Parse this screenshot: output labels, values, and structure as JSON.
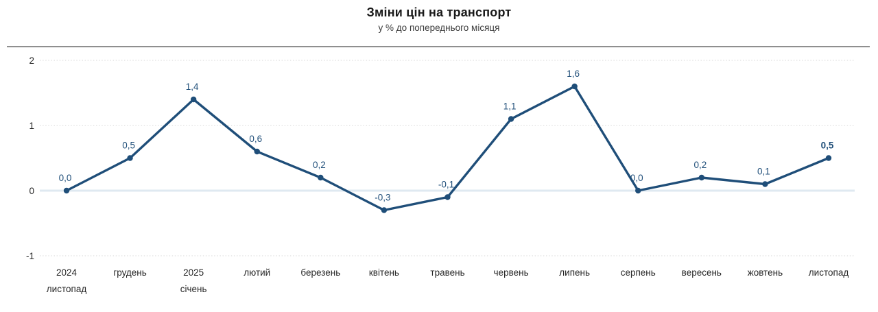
{
  "header": {
    "title": "Зміни цін на транспорт",
    "subtitle": "у % до попереднього місяця"
  },
  "chart_data": {
    "type": "line",
    "title": "Зміни цін на транспорт",
    "subtitle": "у % до попереднього місяця",
    "categories": [
      [
        "2024",
        "листопад"
      ],
      [
        "грудень"
      ],
      [
        "2025",
        "січень"
      ],
      [
        "лютий"
      ],
      [
        "березень"
      ],
      [
        "квітень"
      ],
      [
        "травень"
      ],
      [
        "червень"
      ],
      [
        "липень"
      ],
      [
        "серпень"
      ],
      [
        "вересень"
      ],
      [
        "жовтень"
      ],
      [
        "листопад"
      ]
    ],
    "values": [
      0.0,
      0.5,
      1.4,
      0.6,
      0.2,
      -0.3,
      -0.1,
      1.1,
      1.6,
      0.0,
      0.2,
      0.1,
      0.5
    ],
    "value_labels": [
      "0,0",
      "0,5",
      "1,4",
      "0,6",
      "0,2",
      "-0,3",
      "-0,1",
      "1,1",
      "1,6",
      "0,0",
      "0,2",
      "0,1",
      "0,5"
    ],
    "last_value_bold": true,
    "y_ticks": [
      2,
      1,
      0,
      -1
    ],
    "ylim": [
      -1,
      2
    ],
    "xlabel": "",
    "ylabel": "",
    "grid": "horizontal-dotted",
    "legend": "none",
    "colors": {
      "line": "#1f4e79",
      "marker": "#1f4e79",
      "data_label": "#1f4e79",
      "grid_line": "#d7d7d7",
      "zero_line": "#dfe9f1",
      "axis_text": "#262626",
      "title_text": "#1a1a1a",
      "subtitle_text": "#3d3d3d",
      "header_rule": "#8f8f8f"
    }
  }
}
